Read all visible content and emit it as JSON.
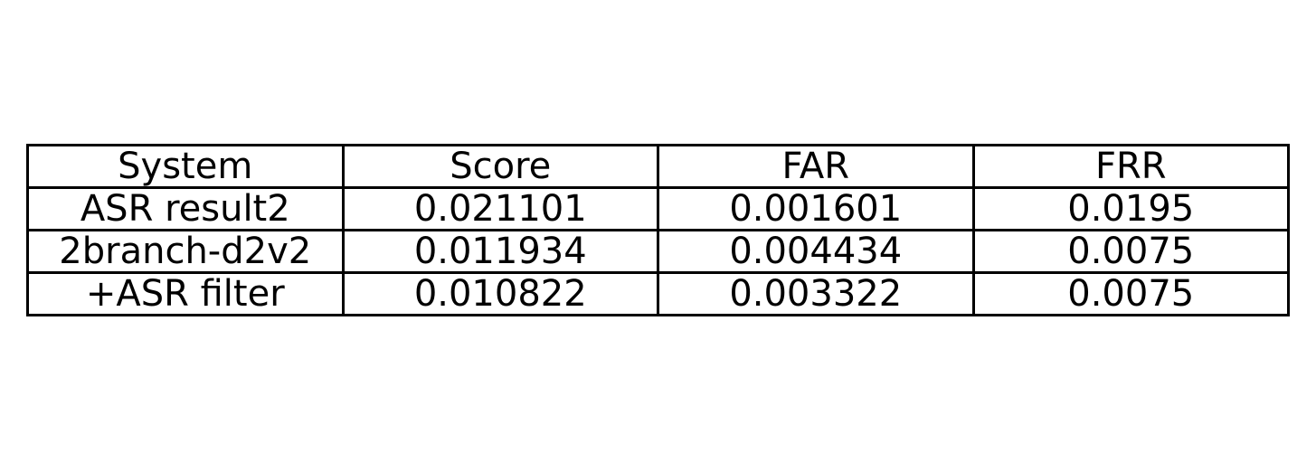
{
  "chart_data": {
    "type": "table",
    "columns": [
      "System",
      "Score",
      "FAR",
      "FRR"
    ],
    "rows": [
      [
        "ASR result2",
        "0.021101",
        "0.001601",
        "0.0195"
      ],
      [
        "2branch-d2v2",
        "0.011934",
        "0.004434",
        "0.0075"
      ],
      [
        "+ASR filter",
        "0.010822",
        "0.003322",
        "0.0075"
      ]
    ]
  }
}
